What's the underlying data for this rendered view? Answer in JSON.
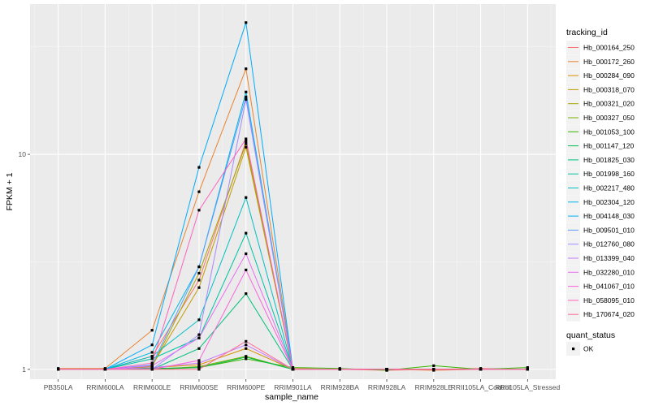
{
  "chart_data": {
    "type": "line",
    "xlabel": "sample_name",
    "ylabel": "FPKM + 1",
    "y_scale": "log10",
    "ylim": [
      0.9,
      50
    ],
    "y_ticks": [
      1,
      10
    ],
    "y_tick_labels": [
      "1",
      "10"
    ],
    "grid": true,
    "legend_placement": "right",
    "categories": [
      "PB350LA",
      "RRIM600LA",
      "RRIM600LE",
      "RRIM600SE",
      "RRIM600PE",
      "RRIM901LA",
      "RRIM928BA",
      "RRIM928LA",
      "RRIM928LE",
      "RRII105LA_Control",
      "RRII105LA_Stressed"
    ],
    "series_legend_title": "tracking_id",
    "series": [
      {
        "name": "Hb_000164_250",
        "color": "#F8766D",
        "values": [
          1.0,
          1.0,
          1.15,
          2.6,
          11.5,
          1.0,
          1.0,
          0.99,
          1.0,
          1.01,
          1.0
        ]
      },
      {
        "name": "Hb_000172_260",
        "color": "#EA8331",
        "values": [
          1.01,
          1.01,
          1.52,
          6.7,
          25.0,
          1.01,
          1.0,
          1.0,
          0.99,
          1.0,
          1.0
        ]
      },
      {
        "name": "Hb_000284_090",
        "color": "#D89000",
        "values": [
          1.0,
          1.0,
          1.02,
          1.05,
          1.25,
          1.0,
          1.0,
          1.0,
          1.0,
          1.0,
          1.0
        ]
      },
      {
        "name": "Hb_000318_070",
        "color": "#C09B00",
        "values": [
          1.0,
          1.0,
          1.04,
          2.4,
          10.8,
          1.0,
          1.0,
          1.0,
          1.0,
          1.0,
          1.0
        ]
      },
      {
        "name": "Hb_000321_020",
        "color": "#A3A500",
        "values": [
          1.0,
          1.0,
          1.03,
          2.8,
          11.2,
          1.0,
          1.0,
          1.0,
          1.0,
          1.0,
          1.0
        ]
      },
      {
        "name": "Hb_000327_050",
        "color": "#7CAE00",
        "values": [
          1.0,
          1.0,
          1.0,
          1.03,
          1.15,
          1.0,
          1.0,
          1.0,
          1.0,
          1.0,
          1.0
        ]
      },
      {
        "name": "Hb_001053_100",
        "color": "#39B600",
        "values": [
          1.0,
          1.0,
          1.0,
          1.02,
          1.12,
          1.02,
          1.01,
          0.99,
          1.04,
          1.0,
          1.02
        ]
      },
      {
        "name": "Hb_001147_120",
        "color": "#00BB4E",
        "values": [
          1.0,
          1.0,
          1.01,
          1.02,
          1.14,
          1.0,
          1.0,
          1.0,
          1.0,
          1.0,
          1.0
        ]
      },
      {
        "name": "Hb_001825_030",
        "color": "#00BF7D",
        "values": [
          1.0,
          1.0,
          1.0,
          1.25,
          2.25,
          1.0,
          1.0,
          1.0,
          1.0,
          1.0,
          1.0
        ]
      },
      {
        "name": "Hb_001998_160",
        "color": "#00C1A3",
        "values": [
          1.0,
          1.0,
          1.12,
          1.4,
          4.3,
          1.0,
          1.0,
          1.0,
          1.0,
          1.0,
          1.0
        ]
      },
      {
        "name": "Hb_002217_480",
        "color": "#00BFC4",
        "values": [
          1.0,
          1.0,
          1.15,
          1.7,
          6.3,
          1.0,
          1.0,
          1.0,
          1.0,
          1.0,
          1.0
        ]
      },
      {
        "name": "Hb_002304_120",
        "color": "#00B8E5",
        "values": [
          1.0,
          1.0,
          1.2,
          3.0,
          19.5,
          1.0,
          1.0,
          1.0,
          1.0,
          1.0,
          1.0
        ]
      },
      {
        "name": "Hb_004148_030",
        "color": "#00ABFD",
        "values": [
          1.0,
          1.0,
          1.3,
          8.7,
          41.0,
          1.0,
          1.0,
          1.0,
          1.0,
          1.0,
          1.0
        ]
      },
      {
        "name": "Hb_009501_010",
        "color": "#619CFF",
        "values": [
          1.0,
          1.0,
          1.05,
          3.0,
          18.5,
          1.0,
          1.0,
          1.0,
          1.0,
          1.0,
          1.0
        ]
      },
      {
        "name": "Hb_012760_080",
        "color": "#A58AFF",
        "values": [
          1.0,
          1.0,
          1.0,
          1.45,
          18.0,
          1.0,
          1.0,
          1.0,
          1.0,
          1.0,
          1.0
        ]
      },
      {
        "name": "Hb_013399_040",
        "color": "#C77CFF",
        "values": [
          1.0,
          1.0,
          1.02,
          1.07,
          1.3,
          1.0,
          1.0,
          1.0,
          1.0,
          1.0,
          1.0
        ]
      },
      {
        "name": "Hb_032280_010",
        "color": "#E76BF3",
        "values": [
          1.0,
          1.0,
          1.04,
          1.4,
          3.45,
          1.0,
          1.0,
          1.0,
          1.0,
          1.0,
          1.0
        ]
      },
      {
        "name": "Hb_041067_010",
        "color": "#FA62DB",
        "values": [
          1.0,
          1.0,
          1.0,
          1.1,
          2.9,
          1.0,
          1.0,
          1.0,
          1.0,
          1.0,
          1.0
        ]
      },
      {
        "name": "Hb_058095_010",
        "color": "#FF62BC",
        "values": [
          1.0,
          1.0,
          1.07,
          5.5,
          11.8,
          1.0,
          1.0,
          1.0,
          1.0,
          1.0,
          1.0
        ]
      },
      {
        "name": "Hb_170674_020",
        "color": "#FF6C91",
        "values": [
          1.0,
          1.0,
          1.0,
          1.0,
          1.35,
          1.0,
          1.0,
          1.0,
          1.0,
          1.0,
          1.0
        ]
      }
    ],
    "shape_legend_title": "quant_status",
    "shape_legend_items": [
      "OK"
    ]
  }
}
